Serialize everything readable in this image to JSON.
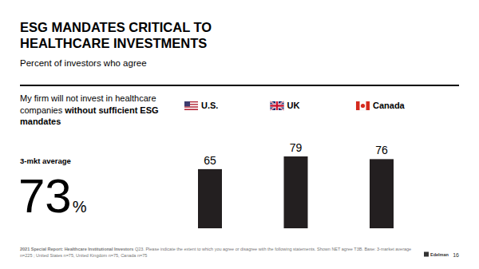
{
  "chart_data": {
    "type": "bar",
    "title": "ESG MANDATES CRITICAL TO HEALTHCARE INVESTMENTS",
    "subtitle": "Percent of investors who agree",
    "statement": "My firm will not invest in healthcare companies",
    "statement_emphasis": "without sufficient ESG mandates",
    "average_label": "3-mkt average",
    "average_value": 73,
    "average_unit": "%",
    "categories": [
      "U.S.",
      "UK",
      "Canada"
    ],
    "values": [
      65,
      79,
      76
    ],
    "color": "#231f20",
    "ylim": [
      0,
      100
    ],
    "data_labels": true,
    "tick_labels": false,
    "grid": false,
    "legend": "top",
    "footnote_source": "2021 Special Report: Healthcare Institutional Investors",
    "footnote": "Q23. Please indicate the extent to which you agree or disagree with the following statements. Shown NET agree T3B. Base: 3-market average n=225 ; United States n=75, United Kingdom n=75, Canada n=75",
    "logo": "Edelman",
    "page_number": 16
  }
}
